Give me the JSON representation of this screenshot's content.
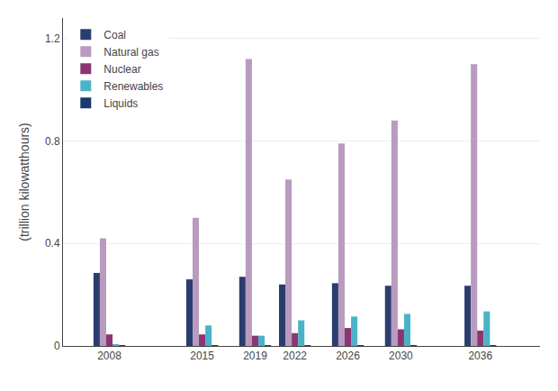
{
  "chart_data": {
    "type": "bar",
    "ylabel": "(trillion kilowatthours)",
    "x": [
      2008,
      2015,
      2019,
      2022,
      2026,
      2030,
      2036
    ],
    "series": [
      {
        "name": "Coal",
        "color": "#2b3d6e",
        "values": [
          0.285,
          0.26,
          0.27,
          0.24,
          0.245,
          0.235,
          0.235
        ]
      },
      {
        "name": "Natural gas",
        "color": "#b89bbf",
        "values": [
          0.42,
          0.5,
          1.12,
          0.65,
          0.79,
          0.88,
          1.1
        ]
      },
      {
        "name": "Nuclear",
        "color": "#8b3572",
        "values": [
          0.045,
          0.045,
          0.04,
          0.05,
          0.07,
          0.065,
          0.06
        ]
      },
      {
        "name": "Renewables",
        "color": "#4ab3c8",
        "values": [
          0.005,
          0.08,
          0.04,
          0.1,
          0.115,
          0.125,
          0.135
        ]
      },
      {
        "name": "Liquids",
        "color": "#1a3a6e",
        "values": [
          0.003,
          0.003,
          0.003,
          0.003,
          0.003,
          0.003,
          0.003
        ]
      }
    ],
    "xlim": [
      2004.5,
      2040.5
    ],
    "xticks": [
      2008,
      2015,
      2019,
      2022,
      2026,
      2030,
      2036
    ],
    "ylim": [
      0,
      1.28
    ],
    "yticks": [
      0,
      0.4,
      0.8,
      1.2
    ],
    "grid": true,
    "legend": "upper left"
  }
}
